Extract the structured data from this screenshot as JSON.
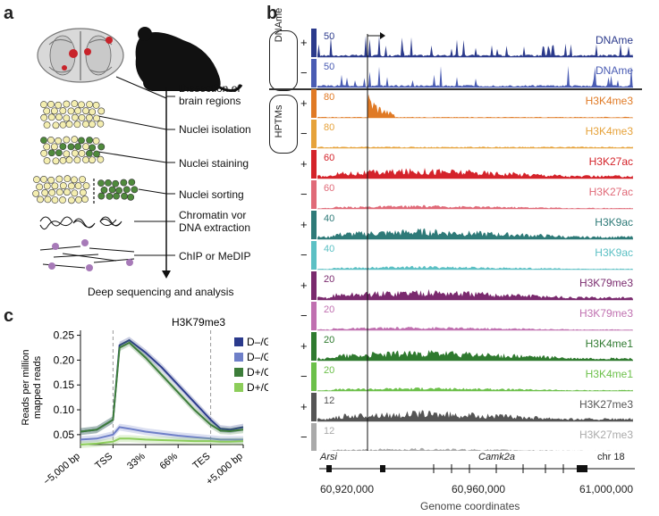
{
  "panels": {
    "a": "a",
    "b": "b",
    "c": "c"
  },
  "panel_a": {
    "steps": [
      "Dissection of brain regions",
      "Nuclei isolation",
      "Nuclei staining",
      "Nuclei sorting",
      "Chromatin vor DNA extraction",
      "ChIP or MeDIP"
    ],
    "final": "Deep sequencing and analysis"
  },
  "panel_b": {
    "groups": [
      "DNAme",
      "HPTMs"
    ],
    "tracks": [
      {
        "label": "DNAme",
        "scale": "50",
        "sign": "+",
        "color": "#2b3a8c"
      },
      {
        "label": "DNAme",
        "scale": "50",
        "sign": "−",
        "color": "#4a5cb3"
      },
      {
        "label": "H3K4me3",
        "scale": "80",
        "sign": "+",
        "color": "#e07a25"
      },
      {
        "label": "H3K4me3",
        "scale": "80",
        "sign": "−",
        "color": "#e6a23a"
      },
      {
        "label": "H3K27ac",
        "scale": "60",
        "sign": "+",
        "color": "#d4232a"
      },
      {
        "label": "H3K27ac",
        "scale": "60",
        "sign": "−",
        "color": "#e06a78"
      },
      {
        "label": "H3K9ac",
        "scale": "40",
        "sign": "+",
        "color": "#2e7a78"
      },
      {
        "label": "H3K9ac",
        "scale": "40",
        "sign": "−",
        "color": "#5cc0c4"
      },
      {
        "label": "H3K79me3",
        "scale": "20",
        "sign": "+",
        "color": "#7a2a6e"
      },
      {
        "label": "H3K79me3",
        "scale": "20",
        "sign": "−",
        "color": "#c070b0"
      },
      {
        "label": "H3K4me1",
        "scale": "20",
        "sign": "+",
        "color": "#2f7a2f"
      },
      {
        "label": "H3K4me1",
        "scale": "20",
        "sign": "−",
        "color": "#6cc04a"
      },
      {
        "label": "H3K27me3",
        "scale": "12",
        "sign": "+",
        "color": "#555555"
      },
      {
        "label": "H3K27me3",
        "scale": "12",
        "sign": "−",
        "color": "#aaaaaa"
      }
    ],
    "genes": {
      "left": "Arsi",
      "center": "Camk2a",
      "chr": "chr 18"
    },
    "xticks": [
      "60,920,000",
      "60,960,000",
      "61,000,000"
    ],
    "xlabel": "Genome coordinates"
  },
  "chart_data": {
    "type": "line",
    "title": "H3K79me3",
    "ylabel": "Reads per million mapped reads",
    "xlabel": "",
    "xticks": [
      "−5,000 bp",
      "TSS",
      "33%",
      "66%",
      "TES",
      "+5,000 bp"
    ],
    "yticks": [
      "0.05",
      "0.10",
      "0.15",
      "0.20",
      "0.25"
    ],
    "ylim": [
      0.03,
      0.26
    ],
    "x": [
      0,
      0.5,
      1,
      1.2,
      1.5,
      2,
      2.5,
      3,
      3.5,
      4,
      4.3,
      4.6,
      5
    ],
    "series": [
      {
        "name": "D–/G–",
        "color": "#2b3a8c",
        "values": [
          0.056,
          0.06,
          0.08,
          0.23,
          0.24,
          0.215,
          0.185,
          0.15,
          0.115,
          0.08,
          0.062,
          0.06,
          0.065
        ]
      },
      {
        "name": "D–/G+",
        "color": "#6e7fc8",
        "values": [
          0.04,
          0.042,
          0.05,
          0.065,
          0.062,
          0.056,
          0.052,
          0.048,
          0.045,
          0.042,
          0.04,
          0.04,
          0.04
        ]
      },
      {
        "name": "D+/G+",
        "color": "#3d7d3a",
        "values": [
          0.056,
          0.06,
          0.08,
          0.225,
          0.235,
          0.205,
          0.17,
          0.135,
          0.1,
          0.07,
          0.058,
          0.057,
          0.06
        ]
      },
      {
        "name": "D+/G–",
        "color": "#8ccd5a",
        "values": [
          0.03,
          0.032,
          0.036,
          0.042,
          0.042,
          0.04,
          0.039,
          0.038,
          0.037,
          0.037,
          0.036,
          0.036,
          0.037
        ]
      }
    ],
    "legend": "right"
  }
}
